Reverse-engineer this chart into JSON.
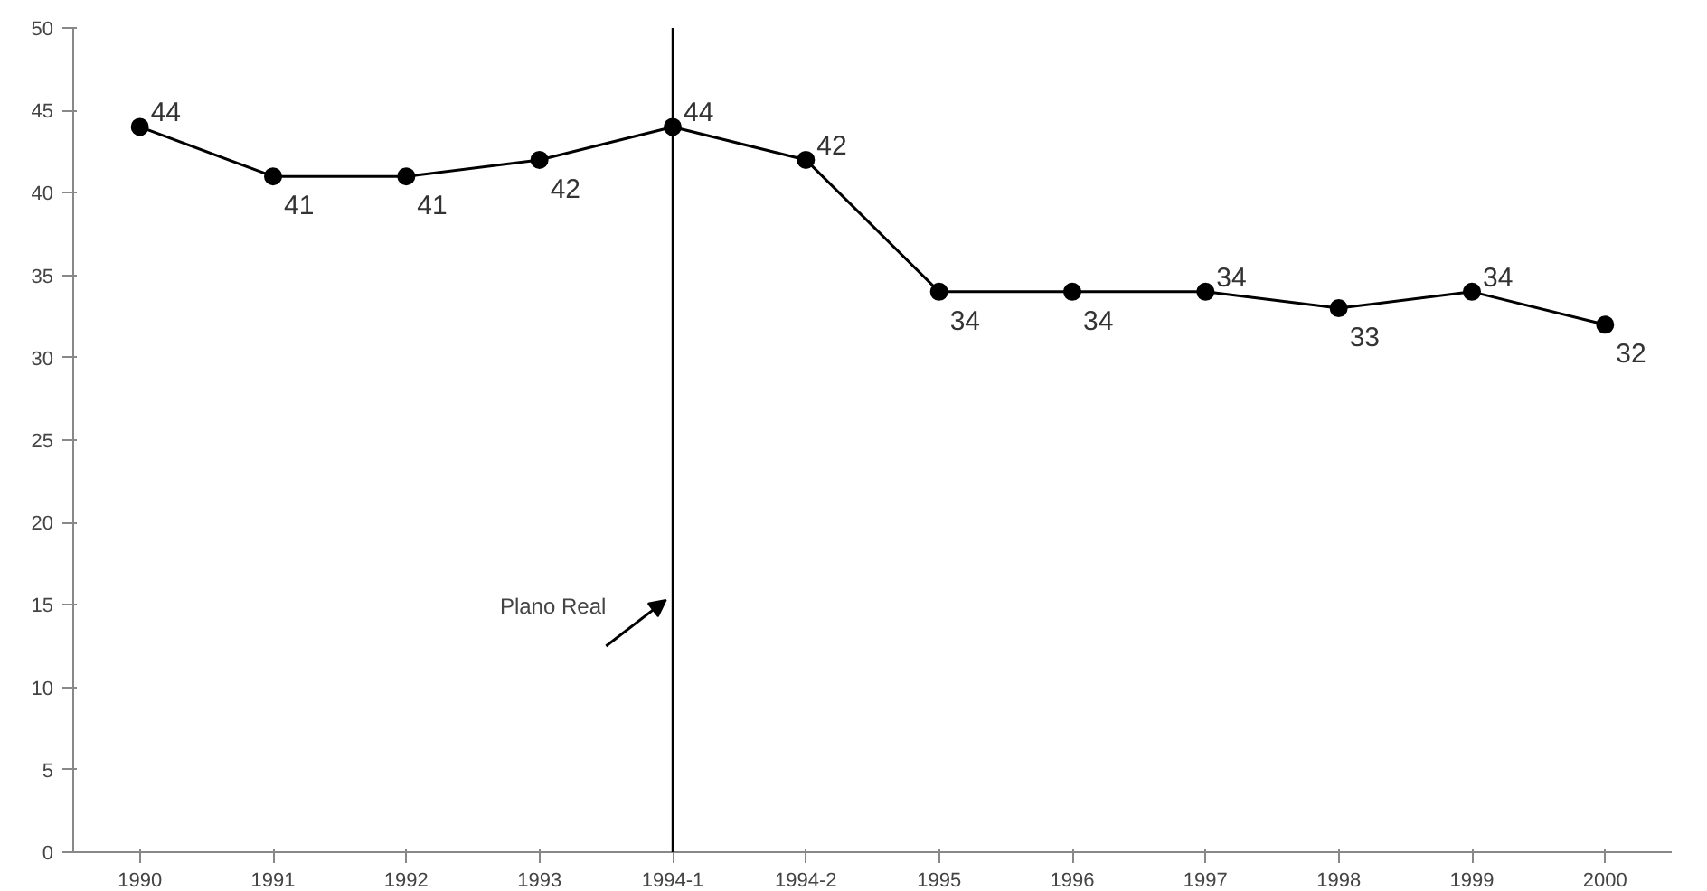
{
  "chart_data": {
    "type": "line",
    "categories": [
      "1990",
      "1991",
      "1992",
      "1993",
      "1994-1",
      "1994-2",
      "1995",
      "1996",
      "1997",
      "1998",
      "1999",
      "2000"
    ],
    "series": [
      {
        "color": "#000000",
        "values": [
          44,
          41,
          41,
          42,
          44,
          42,
          34,
          34,
          34,
          33,
          34,
          32
        ]
      }
    ],
    "ylim": [
      0,
      50
    ],
    "yticks": [
      0,
      5,
      10,
      15,
      20,
      25,
      30,
      35,
      40,
      45,
      50
    ],
    "ref_lines": [
      {
        "axis": "x",
        "value": "1994-1",
        "label": "Plano Real",
        "color": "#000000"
      }
    ],
    "data_labels": true,
    "marker": "circle",
    "grid": false
  }
}
